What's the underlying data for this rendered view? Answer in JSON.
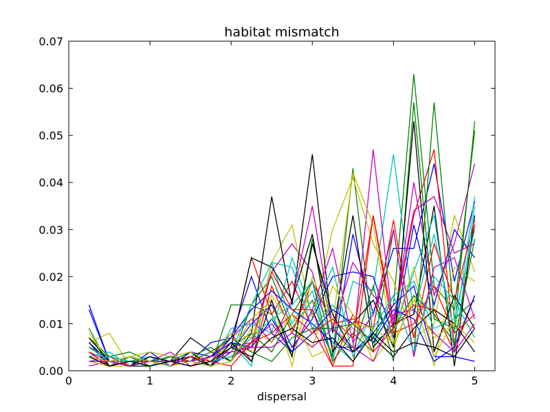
{
  "chart_data": {
    "type": "line",
    "title": "habitat mismatch",
    "xlabel": "dispersal",
    "ylabel": "",
    "xlim": [
      0,
      5.25
    ],
    "ylim": [
      0,
      0.07
    ],
    "xticks": [
      0,
      1,
      2,
      3,
      4,
      5
    ],
    "xtick_labels": [
      "0",
      "1",
      "2",
      "3",
      "4",
      "5"
    ],
    "yticks": [
      0,
      0.01,
      0.02,
      0.03,
      0.04,
      0.05,
      0.06,
      0.07
    ],
    "ytick_labels": [
      "0.00",
      "0.01",
      "0.02",
      "0.03",
      "0.04",
      "0.05",
      "0.06",
      "0.07"
    ],
    "grid": false,
    "x": [
      0.25,
      0.5,
      0.75,
      1.0,
      1.25,
      1.5,
      1.75,
      2.0,
      2.25,
      2.5,
      2.75,
      3.0,
      3.25,
      3.5,
      3.75,
      4.0,
      4.25,
      4.5,
      4.75,
      5.0
    ],
    "series": [
      {
        "color": "#0000ff",
        "values": [
          0.014,
          0.002,
          0.001,
          0.004,
          0.001,
          0.002,
          0.006,
          0.007,
          0.02,
          0.008,
          0.004,
          0.013,
          0.003,
          0.029,
          0.012,
          0.026,
          0.026,
          0.044,
          0.019,
          0.036
        ]
      },
      {
        "color": "#008000",
        "values": [
          0.009,
          0.001,
          0.002,
          0.001,
          0.002,
          0.004,
          0.001,
          0.014,
          0.014,
          0.02,
          0.009,
          0.015,
          0.003,
          0.043,
          0.007,
          0.014,
          0.063,
          0.018,
          0.013,
          0.051
        ]
      },
      {
        "color": "#ff0000",
        "values": [
          0.003,
          0.002,
          0.001,
          0.002,
          0.002,
          0.003,
          0.001,
          0.005,
          0.024,
          0.012,
          0.019,
          0.009,
          0.001,
          0.001,
          0.033,
          0.01,
          0.033,
          0.047,
          0.005,
          0.031
        ]
      },
      {
        "color": "#00bfbf",
        "values": [
          0.002,
          0.002,
          0.002,
          0.001,
          0.003,
          0.002,
          0.003,
          0.006,
          0.001,
          0.023,
          0.01,
          0.017,
          0.002,
          0.019,
          0.017,
          0.046,
          0.012,
          0.029,
          0.008,
          0.037
        ]
      },
      {
        "color": "#bf00bf",
        "values": [
          0.004,
          0.002,
          0.003,
          0.002,
          0.004,
          0.001,
          0.002,
          0.003,
          0.005,
          0.021,
          0.027,
          0.021,
          0.005,
          0.005,
          0.047,
          0.009,
          0.04,
          0.016,
          0.027,
          0.044
        ]
      },
      {
        "color": "#bfbf00",
        "values": [
          0.006,
          0.008,
          0.001,
          0.002,
          0.001,
          0.003,
          0.002,
          0.006,
          0.004,
          0.023,
          0.031,
          0.011,
          0.03,
          0.041,
          0.027,
          0.019,
          0.007,
          0.01,
          0.033,
          0.021
        ]
      },
      {
        "color": "#000000",
        "values": [
          0.005,
          0.002,
          0.001,
          0.001,
          0.002,
          0.007,
          0.004,
          0.002,
          0.008,
          0.037,
          0.014,
          0.046,
          0.008,
          0.033,
          0.005,
          0.01,
          0.012,
          0.035,
          0.001,
          0.033
        ]
      },
      {
        "color": "#0000ff",
        "values": [
          0.013,
          0.002,
          0.002,
          0.003,
          0.002,
          0.002,
          0.001,
          0.004,
          0.01,
          0.014,
          0.005,
          0.011,
          0.02,
          0.021,
          0.02,
          0.007,
          0.031,
          0.014,
          0.03,
          0.024
        ]
      },
      {
        "color": "#008000",
        "values": [
          0.007,
          0.003,
          0.004,
          0.002,
          0.001,
          0.003,
          0.005,
          0.002,
          0.014,
          0.012,
          0.003,
          0.028,
          0.009,
          0.004,
          0.018,
          0.002,
          0.057,
          0.011,
          0.009,
          0.053
        ]
      },
      {
        "color": "#ff0000",
        "values": [
          0.002,
          0.001,
          0.002,
          0.001,
          0.002,
          0.001,
          0.003,
          0.008,
          0.002,
          0.018,
          0.008,
          0.019,
          0.01,
          0.011,
          0.009,
          0.032,
          0.007,
          0.027,
          0.015,
          0.032
        ]
      },
      {
        "color": "#00bfbf",
        "values": [
          0.003,
          0.004,
          0.001,
          0.002,
          0.002,
          0.003,
          0.001,
          0.009,
          0.01,
          0.008,
          0.024,
          0.012,
          0.022,
          0.003,
          0.013,
          0.008,
          0.021,
          0.033,
          0.004,
          0.035
        ]
      },
      {
        "color": "#bf00bf",
        "values": [
          0.001,
          0.002,
          0.002,
          0.001,
          0.002,
          0.001,
          0.002,
          0.007,
          0.011,
          0.006,
          0.015,
          0.035,
          0.009,
          0.023,
          0.016,
          0.011,
          0.034,
          0.037,
          0.025,
          0.027
        ]
      },
      {
        "color": "#bfbf00",
        "values": [
          0.002,
          0.001,
          0.001,
          0.003,
          0.001,
          0.002,
          0.004,
          0.004,
          0.011,
          0.015,
          0.001,
          0.02,
          0.01,
          0.042,
          0.031,
          0.005,
          0.016,
          0.001,
          0.022,
          0.019
        ]
      },
      {
        "color": "#000000",
        "values": [
          0.006,
          0.001,
          0.002,
          0.002,
          0.001,
          0.004,
          0.001,
          0.005,
          0.024,
          0.022,
          0.015,
          0.029,
          0.004,
          0.01,
          0.015,
          0.005,
          0.053,
          0.004,
          0.016,
          0.009
        ]
      },
      {
        "color": "#0000ff",
        "values": [
          0.004,
          0.001,
          0.002,
          0.002,
          0.001,
          0.004,
          0.003,
          0.007,
          0.013,
          0.017,
          0.013,
          0.01,
          0.006,
          0.004,
          0.008,
          0.014,
          0.018,
          0.003,
          0.003,
          0.002
        ]
      },
      {
        "color": "#008000",
        "values": [
          0.004,
          0.001,
          0.003,
          0.001,
          0.002,
          0.002,
          0.001,
          0.005,
          0.008,
          0.004,
          0.012,
          0.019,
          0.002,
          0.008,
          0.004,
          0.03,
          0.003,
          0.057,
          0.011,
          0.015
        ]
      },
      {
        "color": "#ff0000",
        "values": [
          0.002,
          0.003,
          0.001,
          0.002,
          0.002,
          0.003,
          0.002,
          0.003,
          0.006,
          0.021,
          0.013,
          0.013,
          0.001,
          0.012,
          0.004,
          0.009,
          0.014,
          0.013,
          0.004,
          0.016
        ]
      },
      {
        "color": "#00bfbf",
        "values": [
          0.005,
          0.002,
          0.002,
          0.003,
          0.001,
          0.002,
          0.003,
          0.004,
          0.014,
          0.023,
          0.022,
          0.009,
          0.014,
          0.009,
          0.006,
          0.016,
          0.019,
          0.009,
          0.011,
          0.03
        ]
      },
      {
        "color": "#bf00bf",
        "values": [
          0.003,
          0.002,
          0.003,
          0.002,
          0.002,
          0.002,
          0.001,
          0.005,
          0.006,
          0.01,
          0.004,
          0.013,
          0.026,
          0.006,
          0.012,
          0.03,
          0.003,
          0.022,
          0.024,
          0.011
        ]
      },
      {
        "color": "#bfbf00",
        "values": [
          0.008,
          0.002,
          0.003,
          0.004,
          0.003,
          0.004,
          0.002,
          0.008,
          0.007,
          0.016,
          0.009,
          0.005,
          0.018,
          0.012,
          0.002,
          0.008,
          0.022,
          0.003,
          0.011,
          0.009
        ]
      },
      {
        "color": "#000000",
        "values": [
          0.007,
          0.002,
          0.001,
          0.003,
          0.002,
          0.003,
          0.001,
          0.006,
          0.002,
          0.015,
          0.003,
          0.027,
          0.012,
          0.004,
          0.007,
          0.003,
          0.009,
          0.013,
          0.01,
          0.004
        ]
      },
      {
        "color": "#0000ff",
        "values": [
          0.006,
          0.002,
          0.003,
          0.002,
          0.003,
          0.002,
          0.003,
          0.006,
          0.005,
          0.011,
          0.004,
          0.008,
          0.013,
          0.01,
          0.006,
          0.013,
          0.011,
          0.002,
          0.005,
          0.016
        ]
      },
      {
        "color": "#008000",
        "values": [
          0.005,
          0.003,
          0.002,
          0.002,
          0.003,
          0.002,
          0.004,
          0.007,
          0.004,
          0.002,
          0.007,
          0.009,
          0.009,
          0.01,
          0.006,
          0.009,
          0.016,
          0.012,
          0.006,
          0.028
        ]
      },
      {
        "color": "#ff0000",
        "values": [
          0.004,
          0.001,
          0.002,
          0.002,
          0.001,
          0.003,
          0.002,
          0.001,
          0.006,
          0.008,
          0.012,
          0.008,
          0.011,
          0.007,
          0.033,
          0.008,
          0.01,
          0.018,
          0.008,
          0.012
        ]
      },
      {
        "color": "#00bfbf",
        "values": [
          0.002,
          0.003,
          0.002,
          0.001,
          0.002,
          0.001,
          0.002,
          0.003,
          0.007,
          0.011,
          0.014,
          0.019,
          0.006,
          0.002,
          0.009,
          0.016,
          0.004,
          0.02,
          0.015,
          0.007
        ]
      },
      {
        "color": "#bf00bf",
        "values": [
          0.002,
          0.002,
          0.001,
          0.002,
          0.002,
          0.002,
          0.003,
          0.004,
          0.005,
          0.005,
          0.008,
          0.005,
          0.009,
          0.005,
          0.002,
          0.012,
          0.013,
          0.008,
          0.004,
          0.01
        ]
      },
      {
        "color": "#bfbf00",
        "values": [
          0.003,
          0.002,
          0.003,
          0.002,
          0.001,
          0.002,
          0.001,
          0.002,
          0.009,
          0.006,
          0.012,
          0.003,
          0.005,
          0.01,
          0.009,
          0.006,
          0.015,
          0.007,
          0.01,
          0.006
        ]
      },
      {
        "color": "#000000",
        "values": [
          0.003,
          0.001,
          0.002,
          0.001,
          0.002,
          0.001,
          0.002,
          0.005,
          0.003,
          0.007,
          0.009,
          0.006,
          0.007,
          0.002,
          0.008,
          0.004,
          0.006,
          0.005,
          0.003,
          0.009
        ]
      }
    ]
  }
}
